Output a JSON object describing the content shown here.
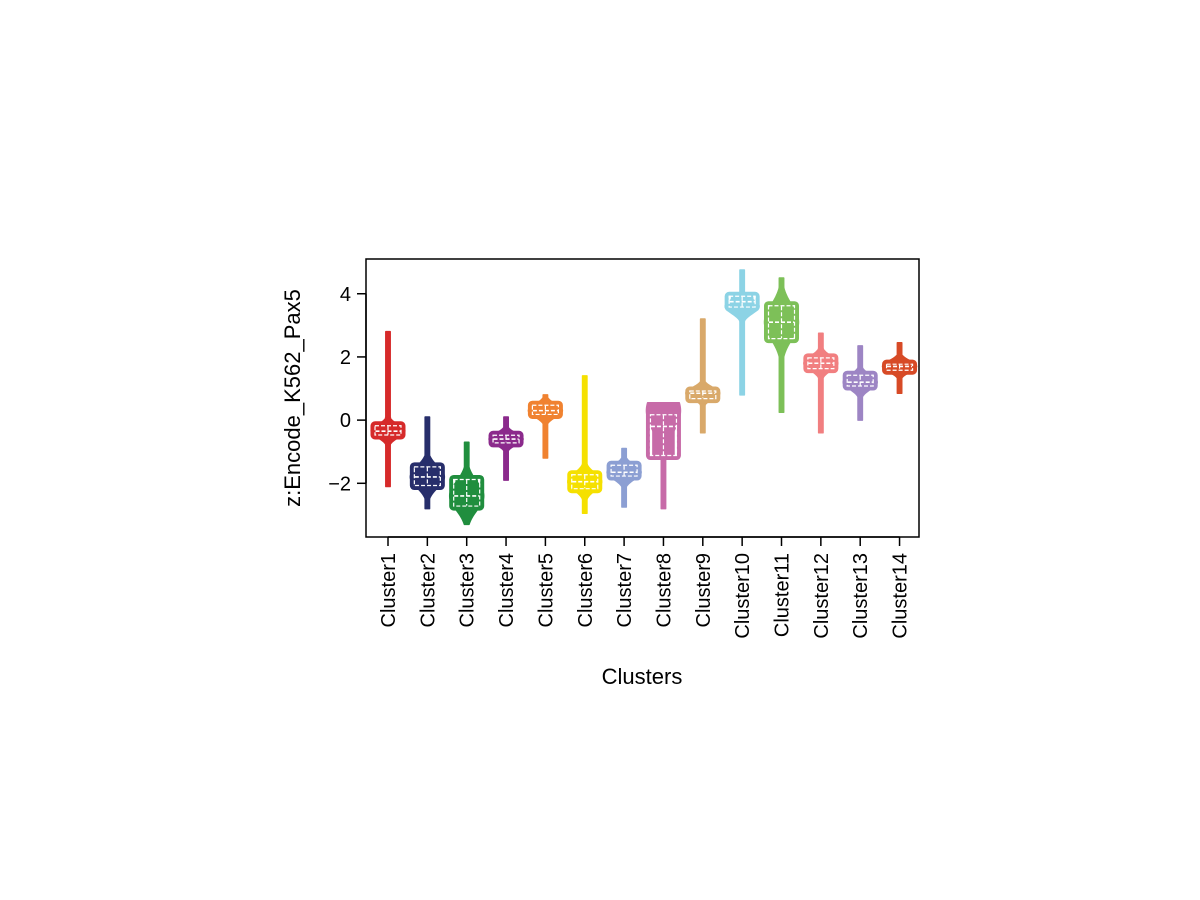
{
  "chart_data": {
    "type": "violin",
    "title": "",
    "xlabel": "Clusters",
    "ylabel": "z:Encode_K562_Pax5",
    "ylim": [
      -3.7,
      5.1
    ],
    "yticks": [
      -2,
      0,
      2,
      4
    ],
    "grid": false,
    "categories": [
      "Cluster1",
      "Cluster2",
      "Cluster3",
      "Cluster4",
      "Cluster5",
      "Cluster6",
      "Cluster7",
      "Cluster8",
      "Cluster9",
      "Cluster10",
      "Cluster11",
      "Cluster12",
      "Cluster13",
      "Cluster14"
    ],
    "colors": [
      "#D62A2A",
      "#272E6B",
      "#208E3E",
      "#8B2A8C",
      "#F08230",
      "#F5E000",
      "#8C9FD3",
      "#C76BA8",
      "#D9A96A",
      "#8CD3E5",
      "#7DC058",
      "#F17F80",
      "#9D85C4",
      "#D74A26"
    ],
    "series": [
      {
        "category": "Cluster1",
        "min": -2.1,
        "max": 2.8,
        "q1": -0.55,
        "median": -0.35,
        "q3": -0.1,
        "mode": -0.35
      },
      {
        "category": "Cluster2",
        "min": -2.8,
        "max": 0.1,
        "q1": -2.15,
        "median": -1.8,
        "q3": -1.4,
        "mode": -1.8
      },
      {
        "category": "Cluster3",
        "min": -3.3,
        "max": -0.7,
        "q1": -2.8,
        "median": -2.4,
        "q3": -1.8,
        "mode": -2.4
      },
      {
        "category": "Cluster4",
        "min": -1.9,
        "max": 0.1,
        "q1": -0.8,
        "median": -0.6,
        "q3": -0.4,
        "mode": -0.6
      },
      {
        "category": "Cluster5",
        "min": -1.2,
        "max": 0.8,
        "q1": 0.1,
        "median": 0.3,
        "q3": 0.55,
        "mode": 0.3
      },
      {
        "category": "Cluster6",
        "min": -2.95,
        "max": 1.4,
        "q1": -2.25,
        "median": -1.95,
        "q3": -1.65,
        "mode": -1.95
      },
      {
        "category": "Cluster7",
        "min": -2.75,
        "max": -0.9,
        "q1": -1.85,
        "median": -1.65,
        "q3": -1.35,
        "mode": -1.65
      },
      {
        "category": "Cluster8",
        "min": -2.8,
        "max": 0.55,
        "q1": -1.2,
        "median": -0.2,
        "q3": 0.25,
        "mode": 0.3
      },
      {
        "category": "Cluster9",
        "min": -0.4,
        "max": 3.2,
        "q1": 0.6,
        "median": 0.85,
        "q3": 1.0,
        "mode": 0.85
      },
      {
        "category": "Cluster10",
        "min": 0.8,
        "max": 4.75,
        "q1": 3.5,
        "median": 3.75,
        "q3": 4.0,
        "mode": 3.6
      },
      {
        "category": "Cluster11",
        "min": 0.25,
        "max": 4.5,
        "q1": 2.5,
        "median": 3.1,
        "q3": 3.7,
        "mode": 3.1
      },
      {
        "category": "Cluster12",
        "min": -0.4,
        "max": 2.75,
        "q1": 1.55,
        "median": 1.8,
        "q3": 2.05,
        "mode": 1.8
      },
      {
        "category": "Cluster13",
        "min": 0.0,
        "max": 2.35,
        "q1": 1.0,
        "median": 1.2,
        "q3": 1.5,
        "mode": 1.2
      },
      {
        "category": "Cluster14",
        "min": 0.85,
        "max": 2.45,
        "q1": 1.5,
        "median": 1.7,
        "q3": 1.85,
        "mode": 1.7
      }
    ]
  }
}
